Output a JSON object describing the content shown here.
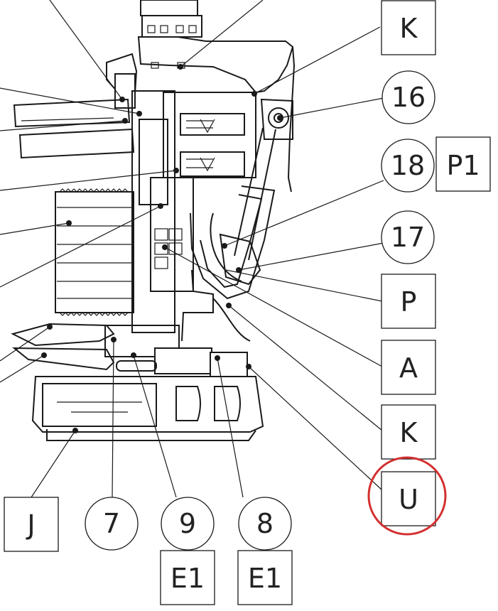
{
  "colors": {
    "line": "#1a1a1a",
    "highlight_circle": "#d32f2f"
  },
  "callouts": [
    {
      "id": "K",
      "shape": "square"
    },
    {
      "id": "16",
      "shape": "circle"
    },
    {
      "id": "18",
      "shape": "circle"
    },
    {
      "id": "P1",
      "shape": "square"
    },
    {
      "id": "17",
      "shape": "circle"
    },
    {
      "id": "P",
      "shape": "square"
    },
    {
      "id": "A",
      "shape": "square"
    },
    {
      "id": "K",
      "shape": "square"
    },
    {
      "id": "U",
      "shape": "square",
      "highlighted": true
    },
    {
      "id": "J",
      "shape": "square"
    },
    {
      "id": "7",
      "shape": "circle"
    },
    {
      "id": "9",
      "shape": "circle"
    },
    {
      "id": "8",
      "shape": "circle"
    },
    {
      "id": "E1",
      "shape": "square"
    },
    {
      "id": "E1",
      "shape": "square"
    }
  ]
}
